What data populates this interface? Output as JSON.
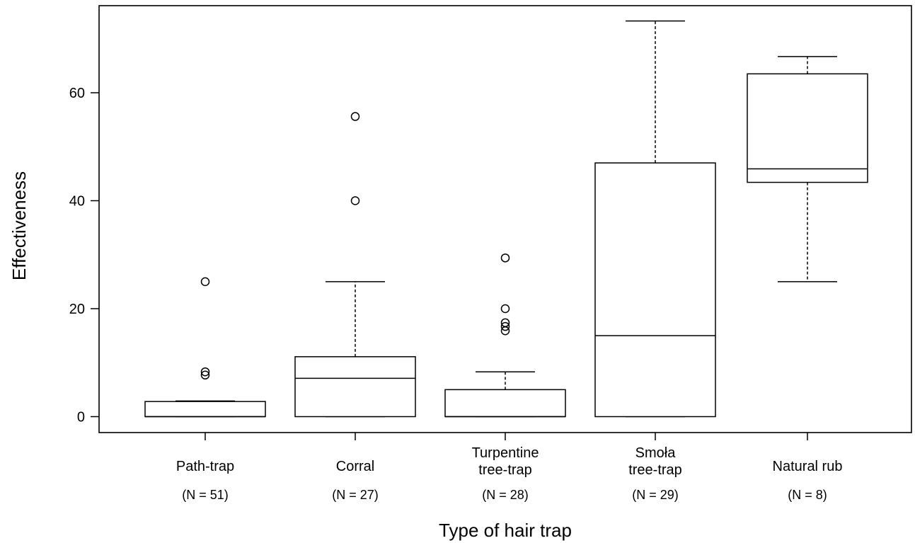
{
  "chart_data": {
    "type": "box",
    "xlabel": "Type of hair trap",
    "ylabel": "Effectiveness",
    "ylim": [
      -3,
      76
    ],
    "yticks": [
      0,
      20,
      40,
      60
    ],
    "ytick_labels": [
      "0",
      "20",
      "40",
      "60"
    ],
    "grid": false,
    "categories": [
      {
        "label_lines": [
          "Path-trap"
        ],
        "n_label": "(N = 51)",
        "whisker_low": 0,
        "q1": 0,
        "median": 0,
        "q3": 2.8,
        "whisker_high": 2.9,
        "outliers": [
          7.7,
          8.3,
          25
        ]
      },
      {
        "label_lines": [
          "Corral"
        ],
        "n_label": "(N = 27)",
        "whisker_low": 0,
        "q1": 0,
        "median": 7.1,
        "q3": 11.1,
        "whisker_high": 25,
        "outliers": [
          40,
          55.6
        ]
      },
      {
        "label_lines": [
          "Turpentine",
          "tree-trap"
        ],
        "n_label": "(N = 28)",
        "whisker_low": 0,
        "q1": 0,
        "median": 0,
        "q3": 5,
        "whisker_high": 8.3,
        "outliers": [
          15.9,
          16.7,
          17.4,
          20,
          29.4
        ]
      },
      {
        "label_lines": [
          "Smoła",
          "tree-trap"
        ],
        "n_label": "(N = 29)",
        "whisker_low": 0,
        "q1": 0,
        "median": 15,
        "q3": 47,
        "whisker_high": 73.3,
        "outliers": []
      },
      {
        "label_lines": [
          "Natural rub"
        ],
        "n_label": "(N = 8)",
        "whisker_low": 25,
        "q1": 43.4,
        "median": 45.9,
        "q3": 63.5,
        "whisker_high": 66.7,
        "outliers": []
      }
    ]
  }
}
